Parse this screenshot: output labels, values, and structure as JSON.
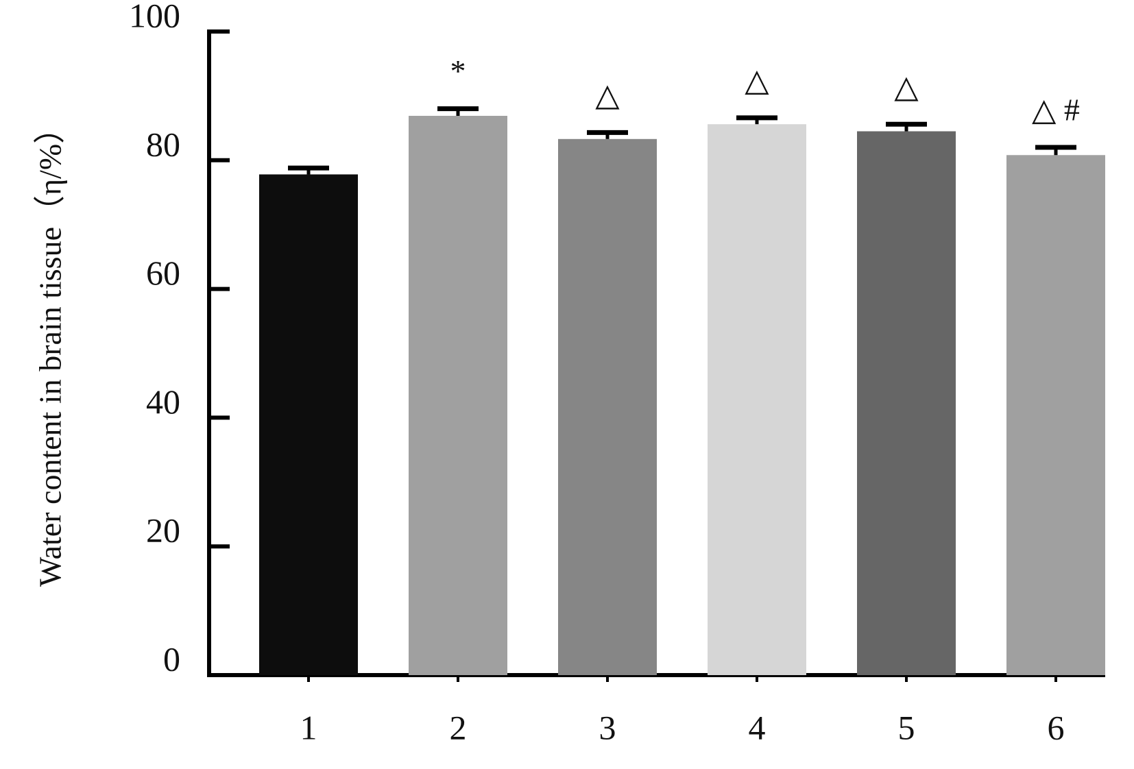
{
  "chart_data": {
    "type": "bar",
    "y_label": "Water content in brain tissue（η/%）",
    "categories": [
      "1",
      "2",
      "3",
      "4",
      "5",
      "6"
    ],
    "values": [
      77.8,
      86.9,
      83.3,
      85.6,
      84.5,
      80.8
    ],
    "errors": [
      1.0,
      1.1,
      1.0,
      1.0,
      1.1,
      1.2
    ],
    "colors": [
      "#0d0d0d",
      "#a0a0a0",
      "#868686",
      "#d6d6d6",
      "#666666",
      "#a0a0a0"
    ],
    "annotations": [
      null,
      "*",
      "△",
      "△",
      "△",
      "△ #"
    ],
    "ylim": [
      0,
      100
    ],
    "yticks": [
      0,
      20,
      40,
      60,
      80,
      100
    ],
    "grid": false
  }
}
